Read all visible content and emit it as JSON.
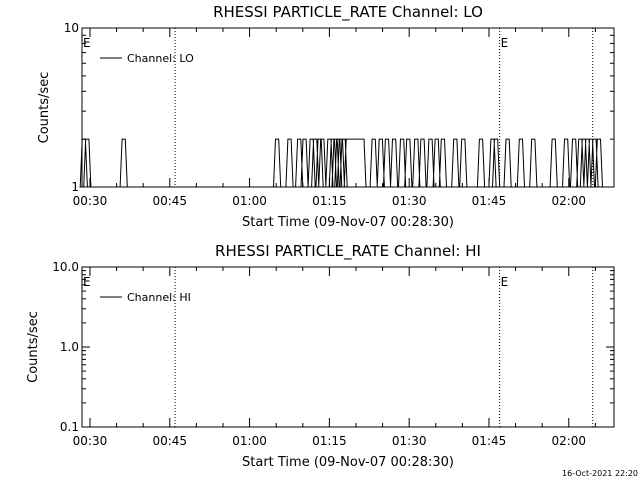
{
  "footer_timestamp": "16-Oct-2021 22:20",
  "chart_data": [
    {
      "type": "line",
      "title": "RHESSI PARTICLE_RATE Channel: LO",
      "xlabel": "Start Time (09-Nov-07 00:28:30)",
      "ylabel": "Counts/sec",
      "y_scale": "log",
      "ylim": [
        1,
        10
      ],
      "y_ticks": [
        1,
        10
      ],
      "y_tick_labels": [
        "1",
        "10"
      ],
      "x_range_minutes": [
        "00:28:30",
        "02:08:30"
      ],
      "x_ticks": [
        "00:30",
        "00:45",
        "01:00",
        "01:15",
        "01:30",
        "01:45",
        "02:00"
      ],
      "legend": {
        "position": "top-left",
        "entries": [
          "Channel: LO"
        ]
      },
      "event_markers": [
        {
          "time": "00:46:00",
          "label": ""
        },
        {
          "time": "01:47:00",
          "label": "E"
        },
        {
          "time": "02:04:30",
          "label": ""
        }
      ],
      "edge_label": "E",
      "series": [
        {
          "name": "Channel: LO",
          "spikes_at_2": [
            "00:28:50",
            "00:29:30",
            "00:36:20",
            "01:05:10",
            "01:07:30",
            "01:09:20",
            "01:10:20",
            "01:11:40",
            "01:12:20",
            "01:13:10",
            "01:13:40",
            "01:15:00",
            "01:15:40",
            "01:16:10",
            "01:16:40",
            "01:17:10",
            "01:17:40",
            "01:23:20",
            "01:24:40",
            "01:25:50",
            "01:27:10",
            "01:28:40",
            "01:29:50",
            "01:31:20",
            "01:32:30",
            "01:34:00",
            "01:35:10",
            "01:36:20",
            "01:38:40",
            "01:40:10",
            "01:43:30",
            "01:45:40",
            "01:46:20",
            "01:48:30",
            "01:51:00",
            "01:53:20",
            "01:57:10",
            "01:59:30",
            "02:01:00",
            "02:02:10",
            "02:02:50",
            "02:03:30",
            "02:04:10",
            "02:04:50",
            "02:05:40"
          ],
          "plateaus_at_2": [
            [
              "01:18:10",
              "01:21:30"
            ]
          ],
          "baseline": 1
        }
      ]
    },
    {
      "type": "line",
      "title": "RHESSI PARTICLE_RATE Channel: HI",
      "xlabel": "Start Time (09-Nov-07 00:28:30)",
      "ylabel": "Counts/sec",
      "y_scale": "log",
      "ylim": [
        0.1,
        10
      ],
      "y_ticks": [
        0.1,
        1,
        10
      ],
      "y_tick_labels": [
        "0.1",
        "1.0",
        "10.0"
      ],
      "x_range_minutes": [
        "00:28:30",
        "02:08:30"
      ],
      "x_ticks": [
        "00:30",
        "00:45",
        "01:00",
        "01:15",
        "01:30",
        "01:45",
        "02:00"
      ],
      "legend": {
        "position": "top-left",
        "entries": [
          "Channel: HI"
        ]
      },
      "event_markers": [
        {
          "time": "00:46:00",
          "label": ""
        },
        {
          "time": "01:47:00",
          "label": "E"
        },
        {
          "time": "02:04:30",
          "label": ""
        }
      ],
      "edge_label": "E",
      "series": [
        {
          "name": "Channel: HI",
          "values": []
        }
      ]
    }
  ]
}
